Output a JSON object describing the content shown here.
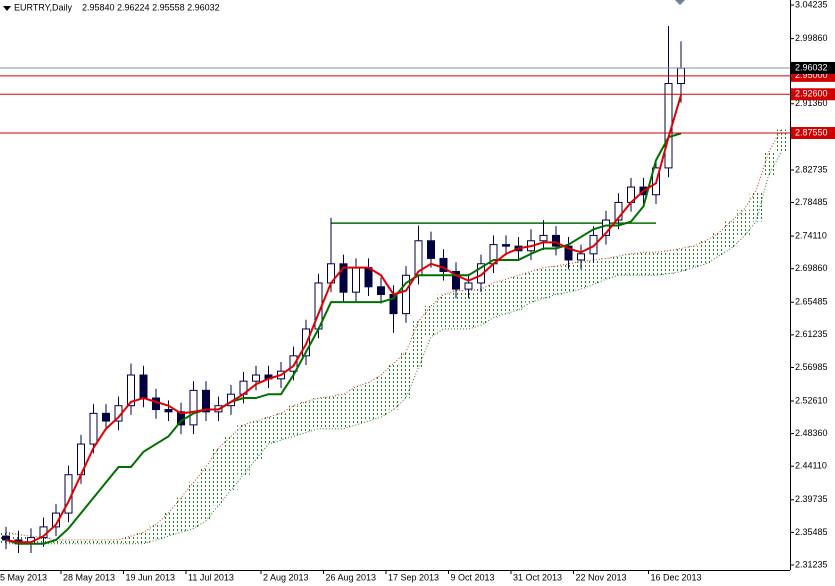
{
  "chart_data": {
    "type": "candlestick",
    "title": "EURTRY,Daily",
    "subtitle": "2.95840 2.96224 2.95558 2.96032",
    "categories": [
      "5 May 2013",
      null,
      null,
      null,
      null,
      null,
      "28 May 2013",
      null,
      null,
      null,
      null,
      "19 Jun 2013",
      null,
      null,
      null,
      null,
      "11 Jul 2013",
      null,
      null,
      null,
      null,
      null,
      "2 Aug 2013",
      null,
      null,
      null,
      null,
      "26 Aug 2013",
      null,
      null,
      null,
      null,
      "17 Sep 2013",
      null,
      null,
      null,
      null,
      "9 Oct 2013",
      null,
      null,
      null,
      null,
      "31 Oct 2013",
      null,
      null,
      null,
      null,
      "22 Nov 2013",
      null,
      null,
      null,
      null,
      null,
      "16 Dec 2013",
      null,
      null,
      null,
      null,
      null,
      null,
      null,
      null,
      null
    ],
    "open": [
      2.35,
      2.345,
      2.34,
      2.348,
      2.362,
      2.38,
      2.43,
      2.47,
      2.51,
      2.5,
      2.52,
      2.56,
      2.53,
      2.515,
      2.512,
      2.495,
      2.54,
      2.512,
      2.52,
      2.535,
      2.552,
      2.56,
      2.555,
      2.565,
      2.585,
      2.62,
      2.68,
      2.705,
      2.668,
      2.7,
      2.675,
      2.665,
      2.64,
      2.69,
      2.735,
      2.712,
      2.695,
      2.672,
      2.68,
      2.705,
      2.73,
      2.728,
      2.722,
      2.735,
      2.742,
      2.728,
      2.71,
      2.718,
      2.742,
      2.762,
      2.785,
      2.805,
      2.795,
      2.83,
      2.94,
      null,
      null,
      null,
      null,
      null,
      null,
      null,
      null
    ],
    "high": [
      2.362,
      2.357,
      2.36,
      2.374,
      2.392,
      2.442,
      2.482,
      2.522,
      2.522,
      2.532,
      2.575,
      2.572,
      2.542,
      2.527,
      2.524,
      2.552,
      2.552,
      2.532,
      2.547,
      2.564,
      2.572,
      2.572,
      2.577,
      2.597,
      2.632,
      2.692,
      2.765,
      2.717,
      2.712,
      2.712,
      2.687,
      2.677,
      2.702,
      2.755,
      2.747,
      2.724,
      2.707,
      2.692,
      2.717,
      2.742,
      2.742,
      2.74,
      2.75,
      2.762,
      2.754,
      2.74,
      2.73,
      2.754,
      2.774,
      2.797,
      2.817,
      2.817,
      2.842,
      3.015,
      2.995,
      null,
      null,
      null,
      null,
      null,
      null,
      null,
      null
    ],
    "low": [
      2.333,
      2.328,
      2.328,
      2.336,
      2.35,
      2.368,
      2.418,
      2.458,
      2.488,
      2.488,
      2.508,
      2.518,
      2.503,
      2.5,
      2.483,
      2.483,
      2.5,
      2.5,
      2.508,
      2.523,
      2.54,
      2.543,
      2.543,
      2.553,
      2.573,
      2.608,
      2.668,
      2.656,
      2.656,
      2.663,
      2.653,
      2.615,
      2.628,
      2.678,
      2.7,
      2.683,
      2.66,
      2.66,
      2.668,
      2.693,
      2.716,
      2.71,
      2.71,
      2.723,
      2.716,
      2.698,
      2.698,
      2.706,
      2.73,
      2.75,
      2.773,
      2.783,
      2.783,
      2.818,
      2.915,
      null,
      null,
      null,
      null,
      null,
      null,
      null,
      null
    ],
    "close": [
      2.345,
      2.34,
      2.348,
      2.362,
      2.38,
      2.43,
      2.47,
      2.51,
      2.5,
      2.52,
      2.56,
      2.53,
      2.515,
      2.512,
      2.495,
      2.54,
      2.512,
      2.52,
      2.535,
      2.552,
      2.56,
      2.555,
      2.565,
      2.585,
      2.62,
      2.68,
      2.705,
      2.668,
      2.7,
      2.675,
      2.665,
      2.64,
      2.69,
      2.735,
      2.712,
      2.695,
      2.672,
      2.68,
      2.705,
      2.73,
      2.728,
      2.722,
      2.735,
      2.742,
      2.728,
      2.71,
      2.718,
      2.742,
      2.762,
      2.785,
      2.805,
      2.795,
      2.83,
      2.94,
      2.96,
      null,
      null,
      null,
      null,
      null,
      null,
      null,
      null
    ],
    "tenkan": {
      "color": "#e00000",
      "values": [
        2.345,
        2.342,
        2.342,
        2.35,
        2.365,
        2.395,
        2.43,
        2.465,
        2.49,
        2.505,
        2.525,
        2.53,
        2.525,
        2.52,
        2.51,
        2.512,
        2.515,
        2.515,
        2.525,
        2.535,
        2.548,
        2.555,
        2.56,
        2.572,
        2.6,
        2.64,
        2.68,
        2.7,
        2.7,
        2.7,
        2.69,
        2.665,
        2.67,
        2.695,
        2.705,
        2.7,
        2.69,
        2.683,
        2.69,
        2.705,
        2.718,
        2.725,
        2.728,
        2.733,
        2.733,
        2.725,
        2.72,
        2.728,
        2.745,
        2.765,
        2.785,
        2.8,
        2.81,
        2.87,
        2.925,
        null,
        null,
        null,
        null,
        null,
        null,
        null,
        null
      ]
    },
    "kijun": {
      "color": "#007000",
      "values": [
        2.345,
        2.34,
        2.34,
        2.34,
        2.345,
        2.36,
        2.38,
        2.4,
        2.42,
        2.44,
        2.44,
        2.46,
        2.47,
        2.48,
        2.5,
        2.51,
        2.515,
        2.515,
        2.525,
        2.53,
        2.53,
        2.535,
        2.535,
        2.56,
        2.59,
        2.62,
        2.655,
        2.655,
        2.655,
        2.655,
        2.655,
        2.66,
        2.68,
        2.69,
        2.69,
        2.69,
        2.69,
        2.69,
        2.7,
        2.71,
        2.71,
        2.71,
        2.718,
        2.725,
        2.725,
        2.73,
        2.74,
        2.75,
        2.755,
        2.755,
        2.76,
        2.78,
        2.84,
        2.87,
        2.875,
        null,
        null,
        null,
        null,
        null,
        null,
        null,
        null
      ]
    },
    "span_a": {
      "color": "#c03020",
      "values": [
        2.355,
        2.352,
        2.35,
        2.348,
        2.345,
        2.345,
        2.345,
        2.345,
        2.345,
        2.345,
        2.35,
        2.355,
        2.365,
        2.38,
        2.4,
        2.42,
        2.44,
        2.465,
        2.48,
        2.495,
        2.5,
        2.505,
        2.51,
        2.52,
        2.525,
        2.53,
        2.532,
        2.535,
        2.545,
        2.55,
        2.56,
        2.575,
        2.59,
        2.63,
        2.65,
        2.665,
        2.67,
        2.67,
        2.672,
        2.68,
        2.685,
        2.69,
        2.695,
        2.7,
        2.702,
        2.705,
        2.708,
        2.71,
        2.712,
        2.715,
        2.718,
        2.72,
        2.72,
        2.722,
        2.725,
        2.728,
        2.735,
        2.745,
        2.76,
        2.775,
        2.8,
        2.85,
        2.88
      ]
    },
    "span_b": {
      "color": "#208020",
      "values": [
        2.34,
        2.34,
        2.34,
        2.34,
        2.34,
        2.34,
        2.34,
        2.34,
        2.34,
        2.34,
        2.34,
        2.34,
        2.345,
        2.35,
        2.355,
        2.36,
        2.37,
        2.39,
        2.41,
        2.43,
        2.45,
        2.47,
        2.475,
        2.48,
        2.485,
        2.49,
        2.49,
        2.49,
        2.495,
        2.5,
        2.505,
        2.515,
        2.53,
        2.57,
        2.61,
        2.62,
        2.62,
        2.62,
        2.625,
        2.635,
        2.64,
        2.645,
        2.655,
        2.66,
        2.665,
        2.668,
        2.672,
        2.678,
        2.685,
        2.69,
        2.69,
        2.69,
        2.69,
        2.692,
        2.695,
        2.7,
        2.705,
        2.715,
        2.725,
        2.74,
        2.76,
        2.82,
        2.85
      ]
    },
    "resistance": 2.758,
    "levels": [
      {
        "value": 2.95,
        "label": "2.95000"
      },
      {
        "value": 2.926,
        "label": "2.92600"
      },
      {
        "value": 2.8755,
        "label": "2.87550"
      }
    ],
    "current_price": 2.96032,
    "ylim": [
      2.3058,
      3.0489
    ],
    "yticks": [
      3.04235,
      {
        "value": 2.9986,
        "label": "2.99860"
      },
      {
        "value": 2.9136,
        "label": "2.91360"
      },
      2.82735,
      2.78485,
      {
        "value": 2.7411,
        "label": "2.74110"
      },
      {
        "value": 2.6986,
        "label": "2.69860"
      },
      2.65485,
      2.61235,
      2.56985,
      {
        "value": 2.5261,
        "label": "2.52610"
      },
      {
        "value": 2.4836,
        "label": "2.48360"
      },
      {
        "value": 2.4411,
        "label": "2.44110"
      },
      2.39735,
      2.35485,
      2.31235
    ]
  }
}
